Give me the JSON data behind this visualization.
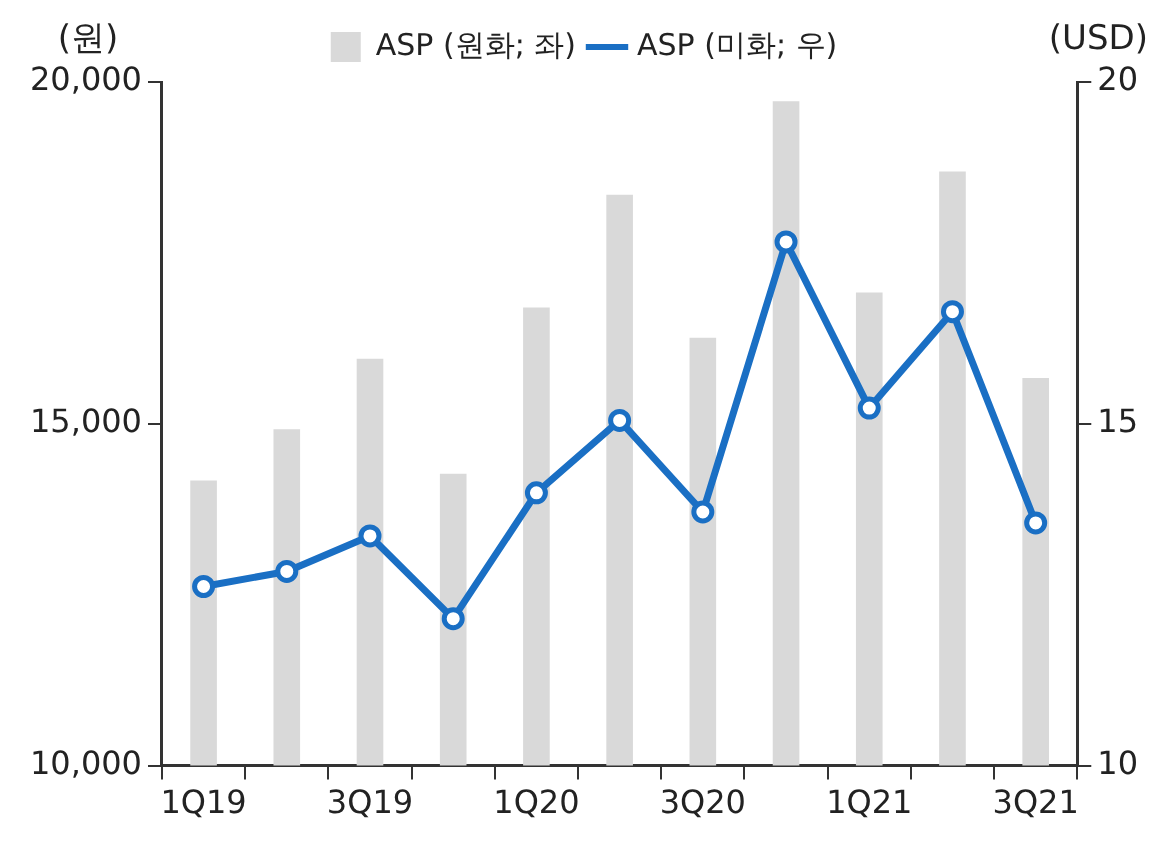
{
  "chart_data": {
    "type": "bar",
    "categories": [
      "1Q19",
      null,
      "3Q19",
      null,
      "1Q20",
      null,
      "3Q20",
      null,
      "1Q21",
      null,
      "3Q21"
    ],
    "series": [
      {
        "name": "ASP (원화; 좌)",
        "color": "#d9d9d9",
        "values": [
          14170,
          14920,
          15950,
          14270,
          16700,
          18350,
          16260,
          19720,
          16920,
          18690,
          15670
        ]
      },
      {
        "name": "ASP (미화; 우)",
        "type": "line",
        "axis": "y2",
        "color": "#1a6fc4",
        "marker": "circle",
        "values": [
          12.62,
          12.84,
          13.36,
          12.15,
          13.99,
          15.05,
          13.71,
          17.66,
          15.23,
          16.64,
          13.55
        ]
      }
    ],
    "ylabel": "(원)",
    "y2label": "(USD)",
    "ylim": [
      10000,
      20000
    ],
    "yticks": [
      {
        "value": 10000,
        "label": "10,000"
      },
      {
        "value": 15000,
        "label": "15,000"
      },
      {
        "value": 20000,
        "label": "20,000"
      }
    ],
    "y2lim": [
      10,
      20
    ],
    "y2ticks": [
      10,
      15,
      20
    ],
    "grid": false,
    "legend": "top"
  }
}
